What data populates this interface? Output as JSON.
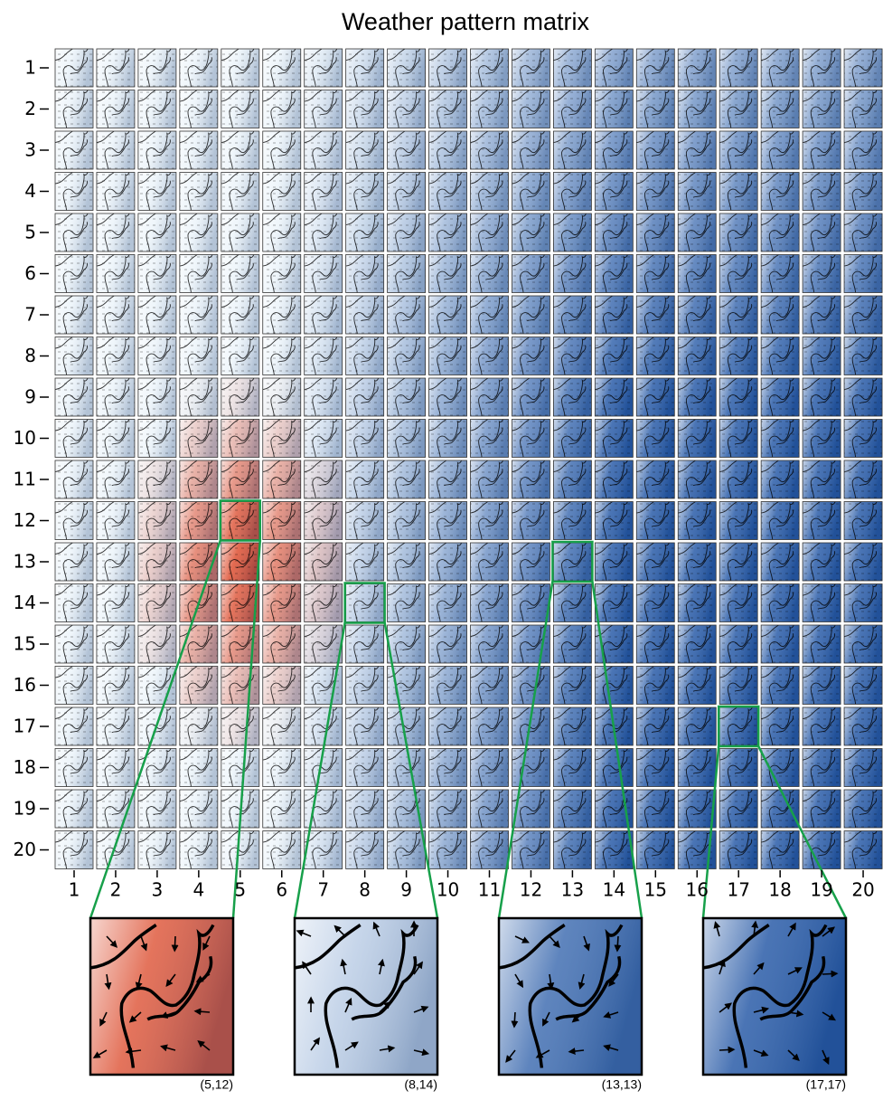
{
  "title": "Weather pattern matrix",
  "rows": [
    1,
    2,
    3,
    4,
    5,
    6,
    7,
    8,
    9,
    10,
    11,
    12,
    13,
    14,
    15,
    16,
    17,
    18,
    19,
    20
  ],
  "columns": [
    1,
    2,
    3,
    4,
    5,
    6,
    7,
    8,
    9,
    10,
    11,
    12,
    13,
    14,
    15,
    16,
    17,
    18,
    19,
    20
  ],
  "insets": [
    {
      "label": "(5,12)"
    },
    {
      "label": "(8,14)"
    },
    {
      "label": "(13,13)"
    },
    {
      "label": "(17,17)"
    }
  ]
}
